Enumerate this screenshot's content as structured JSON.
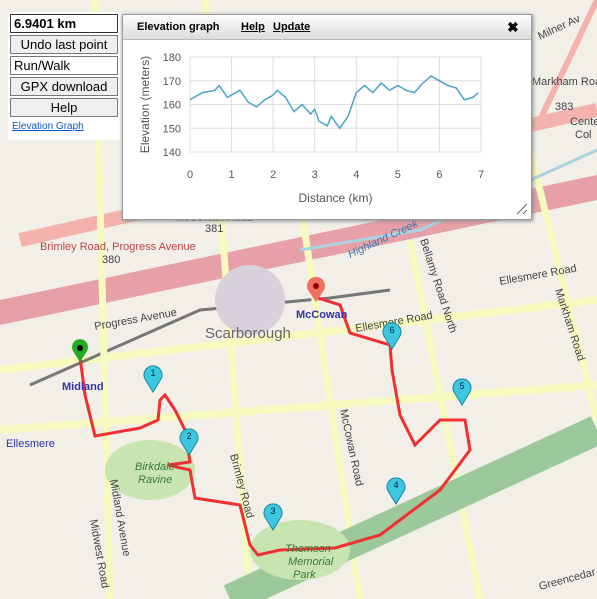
{
  "controls": {
    "distance": "6.9401 km",
    "undo": "Undo last point",
    "mode": "Run/Walk",
    "gpx": "GPX download",
    "help": "Help",
    "elevation_link": "Elevation Graph"
  },
  "map_labels": {
    "brimley_progress": "Brimley Road, Progress Avenue",
    "route_380": "380",
    "progress_ave": "Progress Avenue",
    "scarborough": "Scarborough",
    "mccowan_station": "McCowan",
    "midland_station": "Midland",
    "ellesmere_station": "Ellesmere",
    "ellesmere_road": "Ellesmere Road",
    "ellesmere_road_east": "Ellesmere Road",
    "midland_ave": "Midland Avenue",
    "midwest_road": "Midwest Road",
    "brimley_road": "Brimley Road",
    "mccowan_road": "McCowan Road",
    "bellamy_road": "Bellamy Road North",
    "markham_road": "Markham Road",
    "markham_road_383": "Markham Road",
    "route_383": "383",
    "route_381": "381",
    "mccowan_road_381": "McCowan Road",
    "birkdale": "Birkdale",
    "ravine": "Ravine",
    "thomson": "Thomson",
    "memorial": "Memorial",
    "park": "Park",
    "highland_creek": "Highland Creek",
    "milner": "Milner Av",
    "greencedar": "Greencedar",
    "centre": "Cente",
    "col": "Col"
  },
  "waypoints": [
    "1",
    "2",
    "3",
    "4",
    "5",
    "6"
  ],
  "graph_panel": {
    "help": "Help",
    "update": "Update",
    "close": "✖"
  },
  "chart_data": {
    "type": "line",
    "title": "Elevation graph",
    "x_label": "Distance (km)",
    "y_label": "Elevation (meters)",
    "color": "#4aa3c8",
    "x": [
      0,
      0.3,
      0.6,
      0.7,
      0.9,
      1.2,
      1.4,
      1.6,
      1.8,
      2.0,
      2.1,
      2.3,
      2.5,
      2.7,
      2.9,
      3.0,
      3.1,
      3.3,
      3.4,
      3.6,
      3.8,
      4.0,
      4.2,
      4.4,
      4.6,
      4.8,
      5.0,
      5.2,
      5.4,
      5.6,
      5.8,
      6.0,
      6.2,
      6.4,
      6.6,
      6.8,
      6.94
    ],
    "values": [
      162,
      165,
      166,
      168,
      163,
      166,
      161,
      159,
      162,
      164,
      166,
      163,
      157,
      160,
      156,
      158,
      153,
      151,
      155,
      150,
      155,
      165,
      168,
      165,
      169,
      166,
      168,
      166,
      165,
      169,
      172,
      170,
      168,
      167,
      162,
      163,
      165
    ],
    "xlim": [
      0,
      7
    ],
    "ylim": [
      140,
      180
    ],
    "xticks": [
      0,
      1,
      2,
      3,
      4,
      5,
      6,
      7
    ],
    "yticks": [
      140,
      150,
      160,
      170,
      180
    ],
    "grid": true
  }
}
